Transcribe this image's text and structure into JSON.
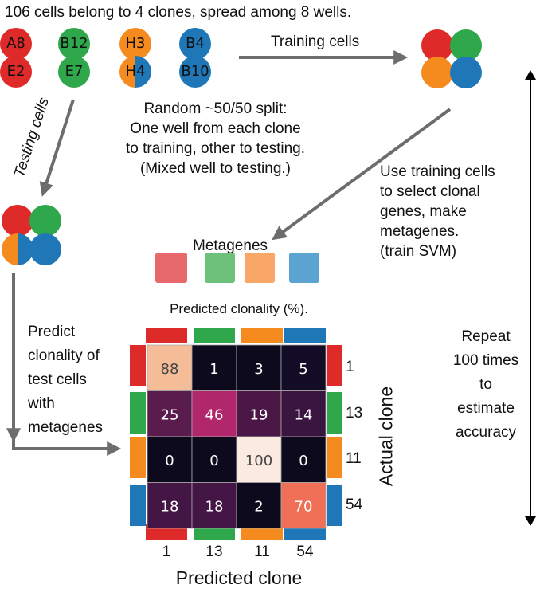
{
  "header": {
    "title": "106 cells belong to 4 clones, spread among 8 wells."
  },
  "colors": {
    "red": "#df2a2a",
    "green": "#2ea84b",
    "orange": "#f58a1f",
    "blue": "#1f77b8",
    "meta_red": "#e8696d",
    "meta_green": "#6dc17b",
    "meta_orange": "#f8a768",
    "meta_blue": "#5ba3d0",
    "arrow": "#6d6d6d"
  },
  "wells": [
    {
      "label": "A8",
      "color": "red"
    },
    {
      "label": "E2",
      "color": "red"
    },
    {
      "label": "B12",
      "color": "green"
    },
    {
      "label": "E7",
      "color": "green"
    },
    {
      "label": "H3",
      "color": "orange"
    },
    {
      "label": "H4",
      "color": "orange+blue"
    },
    {
      "label": "B4",
      "color": "blue"
    },
    {
      "label": "B10",
      "color": "blue"
    }
  ],
  "labels": {
    "training_cells": "Training cells",
    "testing_cells": "Testing cells",
    "split": [
      "Random ~50/50 split:",
      "One well from each clone",
      "to training, other to testing.",
      "(Mixed well to testing.)"
    ],
    "use_training": [
      "Use training cells",
      "to select clonal",
      "genes, make",
      "metagenes.",
      "(train SVM)"
    ],
    "metagenes": "Metagenes",
    "predict": [
      "Predict",
      "clonality of",
      "test cells",
      "with",
      "metagenes"
    ],
    "repeat": [
      "Repeat",
      "100 times",
      "to",
      "estimate",
      "accuracy"
    ]
  },
  "heatmap": {
    "title": "Predicted clonality (%).",
    "xlabel": "Predicted clone",
    "ylabel": "Actual clone",
    "col_labels": [
      "1",
      "13",
      "11",
      "54"
    ],
    "row_labels": [
      "1",
      "13",
      "11",
      "54"
    ],
    "values": [
      [
        88,
        1,
        3,
        5
      ],
      [
        25,
        46,
        19,
        14
      ],
      [
        0,
        0,
        100,
        0
      ],
      [
        18,
        18,
        2,
        70
      ]
    ],
    "cell_colors": [
      [
        "#f5bc98",
        "#0d0a1e",
        "#0d0a1e",
        "#130c26"
      ],
      [
        "#5a1c4d",
        "#b1276b",
        "#4a1747",
        "#3a1540"
      ],
      [
        "#0d0a1e",
        "#0d0a1e",
        "#fbeadf",
        "#0d0a1e"
      ],
      [
        "#441646",
        "#441646",
        "#0d0a1e",
        "#ef7056"
      ]
    ]
  }
}
